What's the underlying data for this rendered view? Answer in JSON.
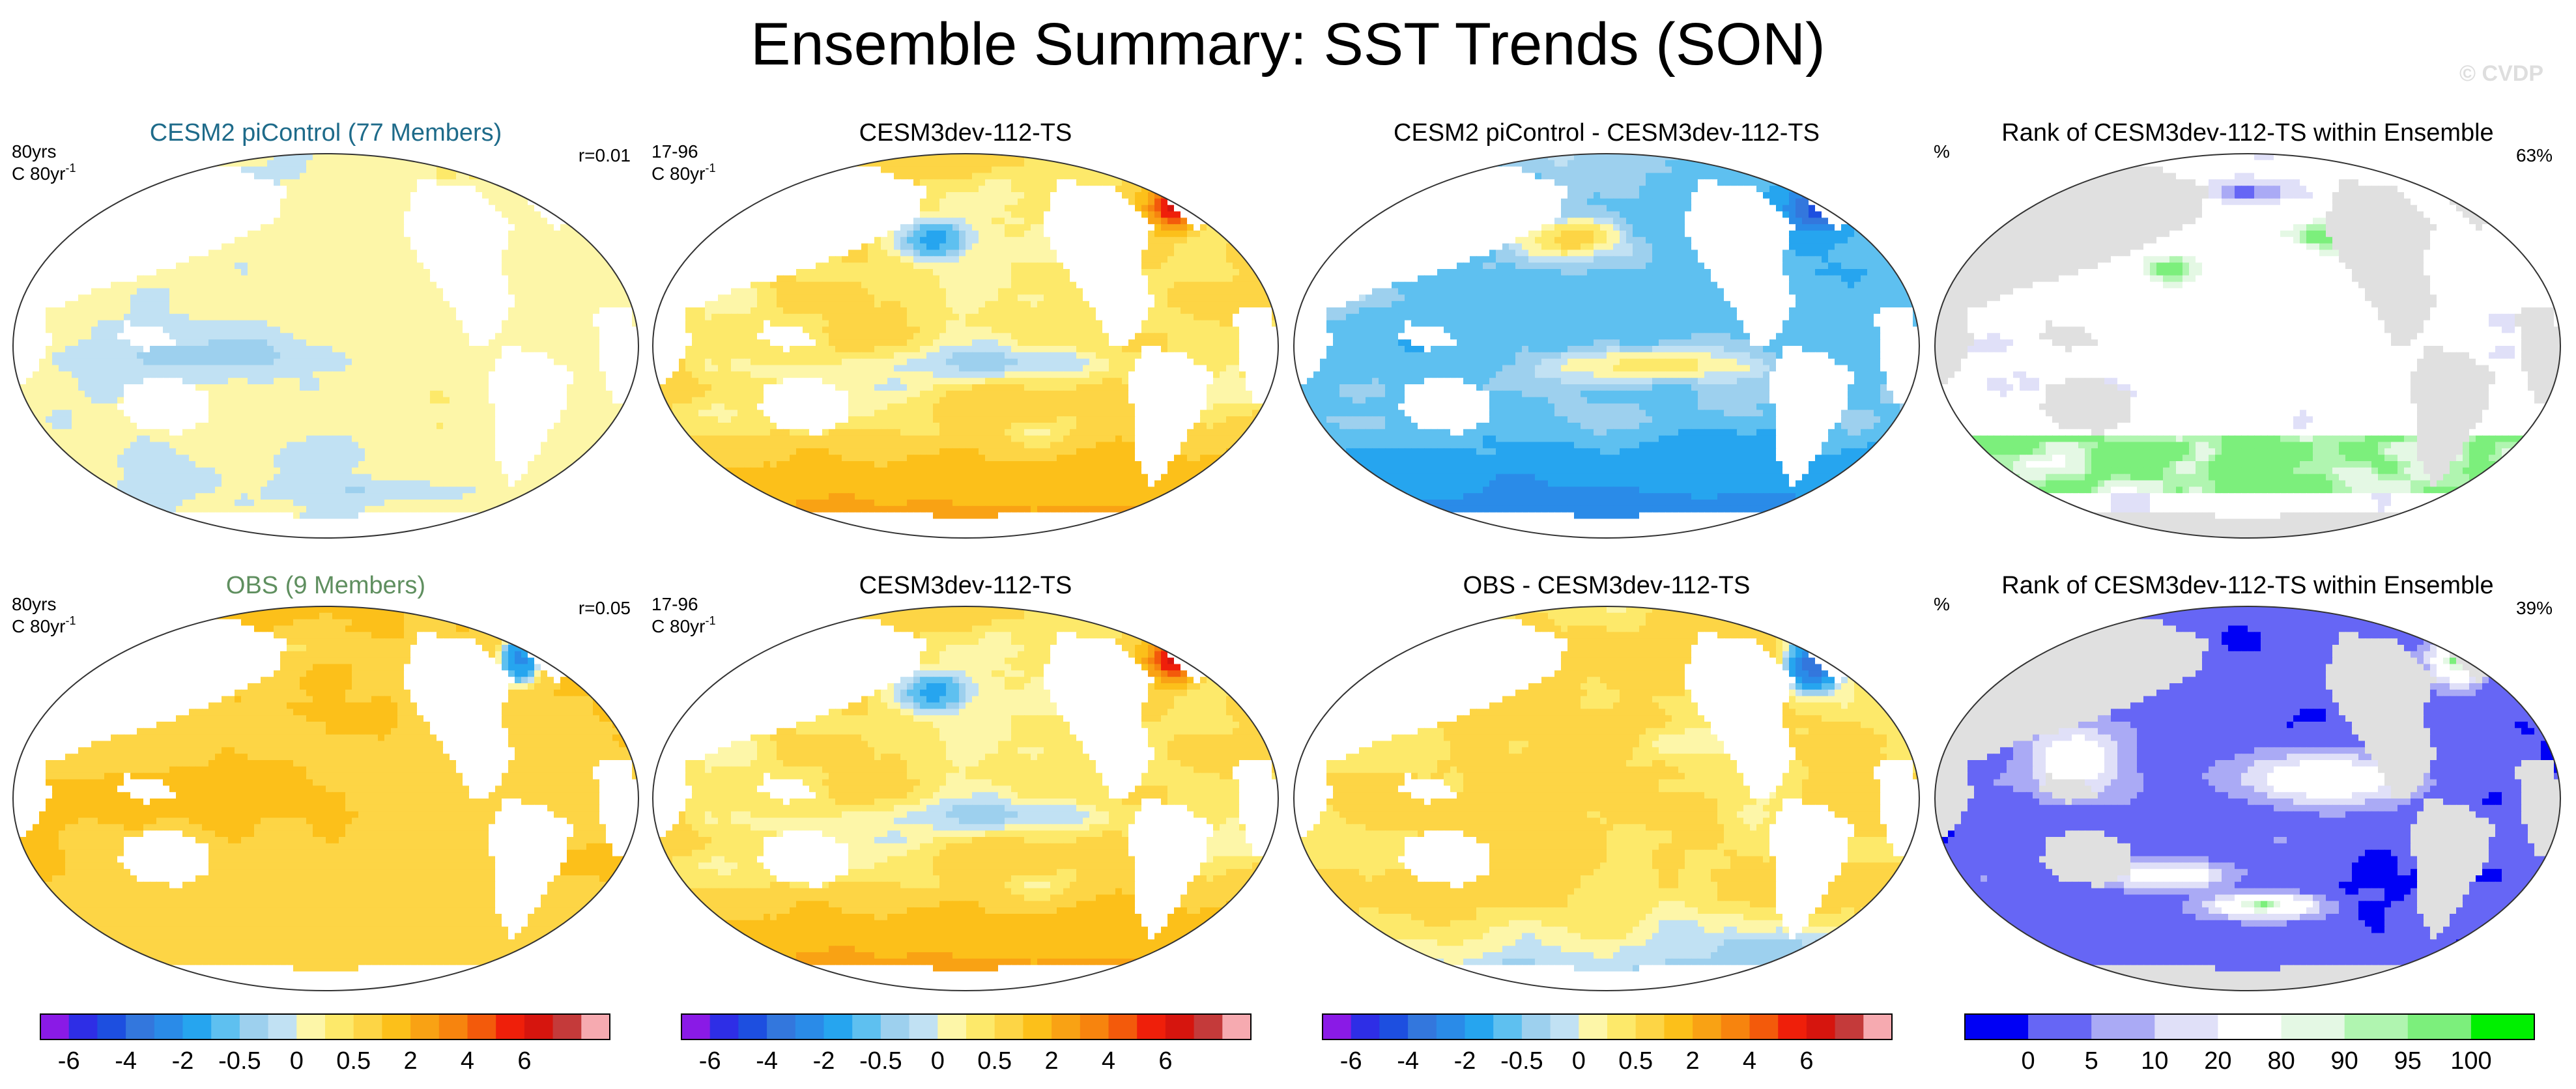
{
  "page": {
    "title": "Ensemble Summary: SST Trends (SON)",
    "watermark": "© CVDP"
  },
  "colors": {
    "trend_scale": [
      "#8a1ae6",
      "#2e2ee6",
      "#1d4fe0",
      "#3377dd",
      "#2a8be8",
      "#26a5ef",
      "#5ec0f0",
      "#9dd0ee",
      "#c1e1f3",
      "#fdf6a8",
      "#fde96a",
      "#fdd545",
      "#fcc01a",
      "#f9a214",
      "#f7840e",
      "#f35a0b",
      "#ef1f0a",
      "#d6150e",
      "#c43a3a",
      "#f6aab0"
    ],
    "rank_scale": [
      "#0000f5",
      "#6666f5",
      "#aaaaf5",
      "#e0e0f8",
      "#ffffff",
      "#e4f8e4",
      "#b0f5b0",
      "#7cef7c",
      "#00f000"
    ],
    "land": "#ffffff",
    "land_rank": "#e0e0e0",
    "coast": "#555555"
  },
  "panels": [
    {
      "title": "CESM2 piControl (77 Members)",
      "title_color": "#1e6b8a",
      "left_top": "80yrs",
      "left_bottom": "C 80yr",
      "superscript": "-1",
      "right": "r=0.01",
      "kind": "trend",
      "pattern": "piControl"
    },
    {
      "title": "CESM3dev-112-TS",
      "title_color": "#000000",
      "left_top": "17-96",
      "left_bottom": "C 80yr",
      "superscript": "-1",
      "right": "",
      "kind": "trend",
      "pattern": "model"
    },
    {
      "title": "CESM2 piControl - CESM3dev-112-TS",
      "title_color": "#000000",
      "left_top": "",
      "left_bottom": "",
      "superscript": "",
      "right": "",
      "kind": "trend",
      "pattern": "diffPi"
    },
    {
      "title": "Rank of CESM3dev-112-TS within Ensemble",
      "title_color": "#000000",
      "left_top": "%",
      "left_bottom": "",
      "superscript": "",
      "right": "63%",
      "kind": "rank",
      "pattern": "rankPi"
    },
    {
      "title": "OBS (9 Members)",
      "title_color": "#5f8f5f",
      "left_top": "80yrs",
      "left_bottom": "C 80yr",
      "superscript": "-1",
      "right": "r=0.05",
      "kind": "trend",
      "pattern": "obs"
    },
    {
      "title": "CESM3dev-112-TS",
      "title_color": "#000000",
      "left_top": "17-96",
      "left_bottom": "C 80yr",
      "superscript": "-1",
      "right": "",
      "kind": "trend",
      "pattern": "model"
    },
    {
      "title": "OBS - CESM3dev-112-TS",
      "title_color": "#000000",
      "left_top": "",
      "left_bottom": "",
      "superscript": "",
      "right": "",
      "kind": "trend",
      "pattern": "diffObs"
    },
    {
      "title": "Rank of CESM3dev-112-TS within Ensemble",
      "title_color": "#000000",
      "left_top": "%",
      "left_bottom": "",
      "superscript": "",
      "right": "39%",
      "kind": "rank",
      "pattern": "rankObs"
    }
  ],
  "colorbars": [
    {
      "kind": "trend",
      "labels": [
        "-6",
        "-4",
        "-2",
        "-0.5",
        "0",
        "0.5",
        "2",
        "4",
        "6"
      ],
      "boundary_index": [
        1,
        3,
        5,
        7,
        9,
        11,
        13,
        15,
        17
      ]
    },
    {
      "kind": "trend",
      "labels": [
        "-6",
        "-4",
        "-2",
        "-0.5",
        "0",
        "0.5",
        "2",
        "4",
        "6"
      ],
      "boundary_index": [
        1,
        3,
        5,
        7,
        9,
        11,
        13,
        15,
        17
      ]
    },
    {
      "kind": "trend",
      "labels": [
        "-6",
        "-4",
        "-2",
        "-0.5",
        "0",
        "0.5",
        "2",
        "4",
        "6"
      ],
      "boundary_index": [
        1,
        3,
        5,
        7,
        9,
        11,
        13,
        15,
        17
      ]
    },
    {
      "kind": "rank",
      "labels": [
        "0",
        "5",
        "10",
        "20",
        "80",
        "90",
        "95",
        "100"
      ],
      "boundary_index": [
        1,
        2,
        3,
        4,
        5,
        6,
        7,
        8
      ]
    }
  ],
  "chart_data": {
    "type": "heatmap",
    "title": "Ensemble Summary: SST Trends (SON)",
    "trend_levels": [
      -6,
      -5,
      -4,
      -3,
      -2,
      -1,
      -0.5,
      -0.25,
      0,
      0.25,
      0.5,
      1,
      2,
      3,
      4,
      5,
      6,
      7,
      8
    ],
    "trend_labels_shown": [
      -6,
      -4,
      -2,
      -0.5,
      0,
      0.5,
      2,
      4,
      6
    ],
    "trend_units": "C 80yr-1",
    "rank_levels": [
      0,
      5,
      10,
      20,
      80,
      90,
      95,
      100
    ],
    "rank_units": "%",
    "panels": [
      {
        "name": "CESM2 piControl (77 Members)",
        "period": "80yrs",
        "pattern_correlation": 0.01
      },
      {
        "name": "CESM3dev-112-TS",
        "period": "17-96"
      },
      {
        "name": "CESM2 piControl - CESM3dev-112-TS"
      },
      {
        "name": "Rank of CESM3dev-112-TS within Ensemble",
        "percent": 63
      },
      {
        "name": "OBS (9 Members)",
        "period": "80yrs",
        "pattern_correlation": 0.05
      },
      {
        "name": "CESM3dev-112-TS",
        "period": "17-96"
      },
      {
        "name": "OBS - CESM3dev-112-TS"
      },
      {
        "name": "Rank of CESM3dev-112-TS within Ensemble",
        "percent": 39
      }
    ]
  }
}
